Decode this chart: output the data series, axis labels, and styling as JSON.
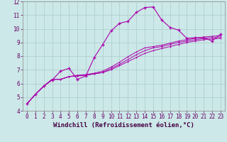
{
  "xlabel": "Windchill (Refroidissement éolien,°C)",
  "bg_color": "#cce8e8",
  "grid_color": "#aacccc",
  "line_color": "#aa00aa",
  "xlim": [
    -0.5,
    23.5
  ],
  "ylim": [
    4,
    12
  ],
  "xticks": [
    0,
    1,
    2,
    3,
    4,
    5,
    6,
    7,
    8,
    9,
    10,
    11,
    12,
    13,
    14,
    15,
    16,
    17,
    18,
    19,
    20,
    21,
    22,
    23
  ],
  "yticks": [
    4,
    5,
    6,
    7,
    8,
    9,
    10,
    11,
    12
  ],
  "line1_x": [
    0,
    1,
    2,
    3,
    4,
    5,
    6,
    7,
    8,
    9,
    10,
    11,
    12,
    13,
    14,
    15,
    16,
    17,
    18,
    19,
    20,
    21,
    22,
    23
  ],
  "line1_y": [
    4.5,
    5.2,
    5.8,
    6.3,
    6.3,
    6.5,
    6.55,
    6.6,
    6.7,
    6.8,
    7.0,
    7.3,
    7.6,
    7.9,
    8.2,
    8.4,
    8.55,
    8.7,
    8.85,
    9.0,
    9.1,
    9.2,
    9.25,
    9.3
  ],
  "line2_x": [
    0,
    1,
    2,
    3,
    4,
    5,
    6,
    7,
    8,
    9,
    10,
    11,
    12,
    13,
    14,
    15,
    16,
    17,
    18,
    19,
    20,
    21,
    22,
    23
  ],
  "line2_y": [
    4.5,
    5.2,
    5.8,
    6.3,
    6.3,
    6.5,
    6.55,
    6.6,
    6.7,
    6.8,
    7.1,
    7.4,
    7.75,
    8.1,
    8.4,
    8.6,
    8.7,
    8.85,
    9.0,
    9.1,
    9.2,
    9.3,
    9.35,
    9.4
  ],
  "line3_x": [
    0,
    1,
    2,
    3,
    4,
    5,
    6,
    7,
    8,
    9,
    10,
    11,
    12,
    13,
    14,
    15,
    16,
    17,
    18,
    19,
    20,
    21,
    22,
    23
  ],
  "line3_y": [
    4.5,
    5.2,
    5.8,
    6.3,
    6.3,
    6.5,
    6.6,
    6.65,
    6.75,
    6.9,
    7.2,
    7.55,
    7.95,
    8.3,
    8.6,
    8.7,
    8.8,
    8.95,
    9.1,
    9.2,
    9.3,
    9.4,
    9.45,
    9.5
  ],
  "line4_x": [
    0,
    1,
    2,
    3,
    4,
    5,
    6,
    7,
    8,
    9,
    10,
    11,
    12,
    13,
    14,
    15,
    16,
    17,
    18,
    19,
    20,
    21,
    22,
    23
  ],
  "line4_y": [
    4.5,
    5.2,
    5.8,
    6.25,
    6.9,
    7.1,
    6.3,
    6.55,
    7.9,
    8.85,
    9.85,
    10.4,
    10.55,
    11.2,
    11.55,
    11.6,
    10.65,
    10.1,
    9.9,
    9.3,
    9.35,
    9.35,
    9.1,
    9.6
  ],
  "tick_fontsize": 5.5,
  "xlabel_fontsize": 6.5
}
